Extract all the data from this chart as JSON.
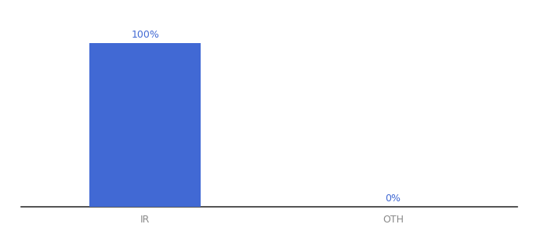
{
  "categories": [
    "IR",
    "OTH"
  ],
  "values": [
    100,
    0
  ],
  "bar_color": "#4169d4",
  "label_color": "#4169d4",
  "background_color": "#ffffff",
  "ylim": [
    0,
    115
  ],
  "label_fontsize": 9,
  "tick_fontsize": 9,
  "tick_color": "#888888",
  "value_labels": [
    "100%",
    "0%"
  ],
  "x_positions": [
    1,
    3
  ],
  "bar_width": 0.9,
  "xlim": [
    0,
    4
  ]
}
